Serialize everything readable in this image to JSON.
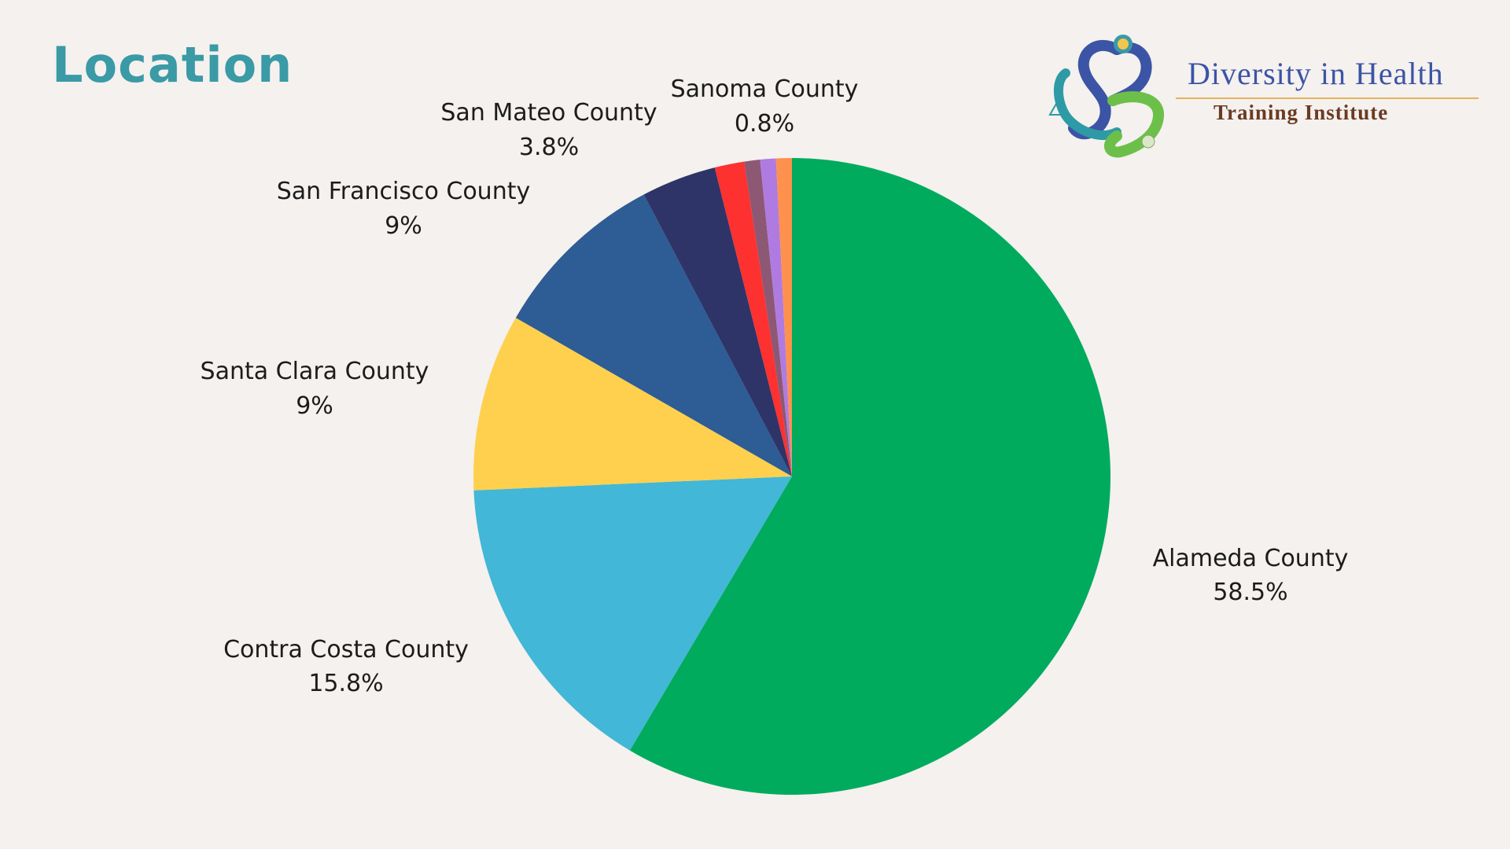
{
  "page": {
    "title": "Location"
  },
  "logo": {
    "line1": "Diversity in Health",
    "line2": "Training Institute"
  },
  "chart_data": {
    "type": "pie",
    "title": "",
    "slices": [
      {
        "label": "Alameda County",
        "value": 58.5,
        "display": "58.5%",
        "color": "#00ab5e"
      },
      {
        "label": "Contra Costa County",
        "value": 15.8,
        "display": "15.8%",
        "color": "#43b7d7"
      },
      {
        "label": "Santa Clara County",
        "value": 9,
        "display": "9%",
        "color": "#fed04e"
      },
      {
        "label": "San Francisco County",
        "value": 9,
        "display": "9%",
        "color": "#2e5c94"
      },
      {
        "label": "San Mateo County",
        "value": 3.8,
        "display": "3.8%",
        "color": "#2f3468"
      },
      {
        "label": "",
        "value": 1.5,
        "display": "",
        "color": "#fe3131"
      },
      {
        "label": "",
        "value": 0.8,
        "display": "",
        "color": "#8c5873"
      },
      {
        "label": "",
        "value": 0.8,
        "display": "",
        "color": "#b07be0"
      },
      {
        "label": "Sanoma County",
        "value": 0.8,
        "display": "0.8%",
        "color": "#fe914d"
      }
    ],
    "start_angle_deg": 0,
    "direction": "clockwise"
  }
}
